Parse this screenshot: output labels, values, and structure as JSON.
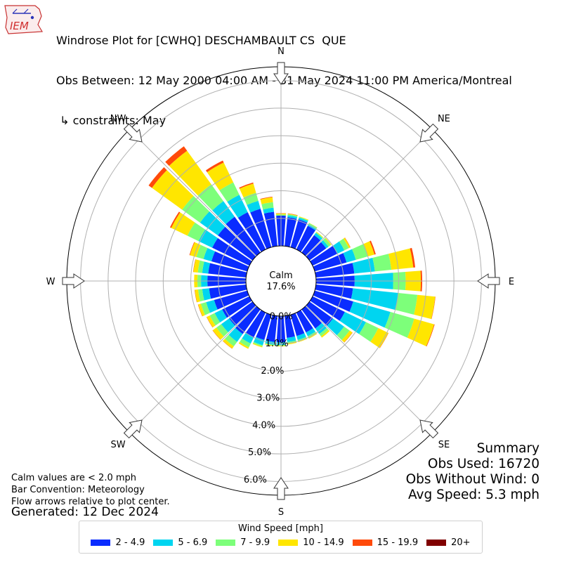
{
  "header": {
    "logo_text": "IEM",
    "title_lines": [
      "Windrose Plot for [CWHQ] DESCHAMBAULT CS  QUE",
      "Obs Between: 12 May 2000 04:00 AM - 31 May 2024 11:00 PM America/Montreal",
      " ↳ constraints: May"
    ]
  },
  "notes": {
    "lines": [
      "Calm values are < 2.0 mph",
      "Bar Convention: Meteorology",
      "Flow arrows relative to plot center."
    ],
    "generated": "Generated: 12 Dec 2024"
  },
  "summary": {
    "lines": [
      "Summary",
      "Obs Used: 16720",
      "Obs Without Wind: 0",
      "Avg Speed: 5.3 mph"
    ]
  },
  "legend": {
    "title": "Wind Speed [mph]"
  },
  "colors": {
    "2 - 4.9": "#0a2cff",
    "5 - 6.9": "#00d5f0",
    "7 - 9.9": "#7dff7a",
    "10 - 14.9": "#ffe600",
    "15 - 19.9": "#ff4a0a",
    "20+": "#800000",
    "grid": "#b0b0b0",
    "arrow_fill": "#ffffff"
  },
  "chart_data": {
    "type": "windrose",
    "calm": {
      "label": "Calm",
      "value_text": "17.6%"
    },
    "radial_labels": [
      "0.0%",
      "1.0%",
      "2.0%",
      "3.0%",
      "4.0%",
      "5.0%",
      "6.0%"
    ],
    "radial_max": 6.5,
    "compass_labels": [
      "N",
      "NE",
      "E",
      "SE",
      "S",
      "SW",
      "W",
      "NW"
    ],
    "speed_bins": [
      "2 - 4.9",
      "5 - 6.9",
      "7 - 9.9",
      "10 - 14.9",
      "15 - 19.9",
      "20+"
    ],
    "directions": [
      {
        "deg": 0,
        "cumulative": [
          1.1,
          1.1,
          1.14,
          1.18,
          1.19,
          1.19
        ]
      },
      {
        "deg": 10,
        "cumulative": [
          1.05,
          1.12,
          1.16,
          1.18,
          1.19,
          1.19
        ]
      },
      {
        "deg": 20,
        "cumulative": [
          1.05,
          1.12,
          1.14,
          1.16,
          1.16,
          1.16
        ]
      },
      {
        "deg": 30,
        "cumulative": [
          0.95,
          1.02,
          1.06,
          1.07,
          1.07,
          1.07
        ]
      },
      {
        "deg": 40,
        "cumulative": [
          0.78,
          0.88,
          0.91,
          0.93,
          0.93,
          0.93
        ]
      },
      {
        "deg": 50,
        "cumulative": [
          0.75,
          0.85,
          0.95,
          0.98,
          0.98,
          0.98
        ]
      },
      {
        "deg": 60,
        "cumulative": [
          1.0,
          1.28,
          1.46,
          1.52,
          1.53,
          1.53
        ]
      },
      {
        "deg": 70,
        "cumulative": [
          1.2,
          1.55,
          2.0,
          2.25,
          2.3,
          2.3
        ]
      },
      {
        "deg": 80,
        "cumulative": [
          1.4,
          2.15,
          2.75,
          3.55,
          3.62,
          3.62
        ]
      },
      {
        "deg": 90,
        "cumulative": [
          1.4,
          2.8,
          3.25,
          3.8,
          3.85,
          3.85
        ]
      },
      {
        "deg": 100,
        "cumulative": [
          1.35,
          3.0,
          3.7,
          4.35,
          4.36,
          4.36
        ]
      },
      {
        "deg": 110,
        "cumulative": [
          1.45,
          2.85,
          3.75,
          4.5,
          4.52,
          4.52
        ]
      },
      {
        "deg": 120,
        "cumulative": [
          1.3,
          2.15,
          2.65,
          3.05,
          3.06,
          3.06
        ]
      },
      {
        "deg": 130,
        "cumulative": [
          1.05,
          1.55,
          1.8,
          1.92,
          1.93,
          1.93
        ]
      },
      {
        "deg": 140,
        "cumulative": [
          0.85,
          1.1,
          1.2,
          1.26,
          1.26,
          1.26
        ]
      },
      {
        "deg": 150,
        "cumulative": [
          0.8,
          0.95,
          1.02,
          1.05,
          1.05,
          1.05
        ]
      },
      {
        "deg": 160,
        "cumulative": [
          0.8,
          0.95,
          1.0,
          1.03,
          1.03,
          1.03
        ]
      },
      {
        "deg": 170,
        "cumulative": [
          0.8,
          0.95,
          1.0,
          1.04,
          1.04,
          1.04
        ]
      },
      {
        "deg": 180,
        "cumulative": [
          0.95,
          1.05,
          1.08,
          1.1,
          1.1,
          1.1
        ]
      },
      {
        "deg": 190,
        "cumulative": [
          0.95,
          1.05,
          1.08,
          1.1,
          1.1,
          1.1
        ]
      },
      {
        "deg": 200,
        "cumulative": [
          0.95,
          1.15,
          1.2,
          1.23,
          1.23,
          1.23
        ]
      },
      {
        "deg": 210,
        "cumulative": [
          1.0,
          1.25,
          1.4,
          1.46,
          1.46,
          1.46
        ]
      },
      {
        "deg": 220,
        "cumulative": [
          1.1,
          1.45,
          1.65,
          1.75,
          1.76,
          1.76
        ]
      },
      {
        "deg": 230,
        "cumulative": [
          1.05,
          1.4,
          1.62,
          1.78,
          1.79,
          1.79
        ]
      },
      {
        "deg": 240,
        "cumulative": [
          1.1,
          1.4,
          1.6,
          1.72,
          1.73,
          1.73
        ]
      },
      {
        "deg": 250,
        "cumulative": [
          1.25,
          1.55,
          1.75,
          1.85,
          1.86,
          1.86
        ]
      },
      {
        "deg": 260,
        "cumulative": [
          1.35,
          1.6,
          1.75,
          1.87,
          1.88,
          1.88
        ]
      },
      {
        "deg": 270,
        "cumulative": [
          1.4,
          1.63,
          1.76,
          1.88,
          1.88,
          1.88
        ]
      },
      {
        "deg": 280,
        "cumulative": [
          1.38,
          1.6,
          1.76,
          1.92,
          1.93,
          1.93
        ]
      },
      {
        "deg": 290,
        "cumulative": [
          1.35,
          1.65,
          1.92,
          2.16,
          2.18,
          2.18
        ]
      },
      {
        "deg": 300,
        "cumulative": [
          1.5,
          2.05,
          2.5,
          3.15,
          3.2,
          3.2
        ]
      },
      {
        "deg": 310,
        "cumulative": [
          1.55,
          2.35,
          3.15,
          4.5,
          4.65,
          4.65
        ]
      },
      {
        "deg": 320,
        "cumulative": [
          1.6,
          2.3,
          3.05,
          4.55,
          4.75,
          4.75
        ]
      },
      {
        "deg": 330,
        "cumulative": [
          1.5,
          2.2,
          2.7,
          3.5,
          3.58,
          3.58
        ]
      },
      {
        "deg": 340,
        "cumulative": [
          1.45,
          1.75,
          2.05,
          2.4,
          2.44,
          2.44
        ]
      },
      {
        "deg": 350,
        "cumulative": [
          1.25,
          1.4,
          1.6,
          1.78,
          1.8,
          1.8
        ]
      }
    ]
  }
}
